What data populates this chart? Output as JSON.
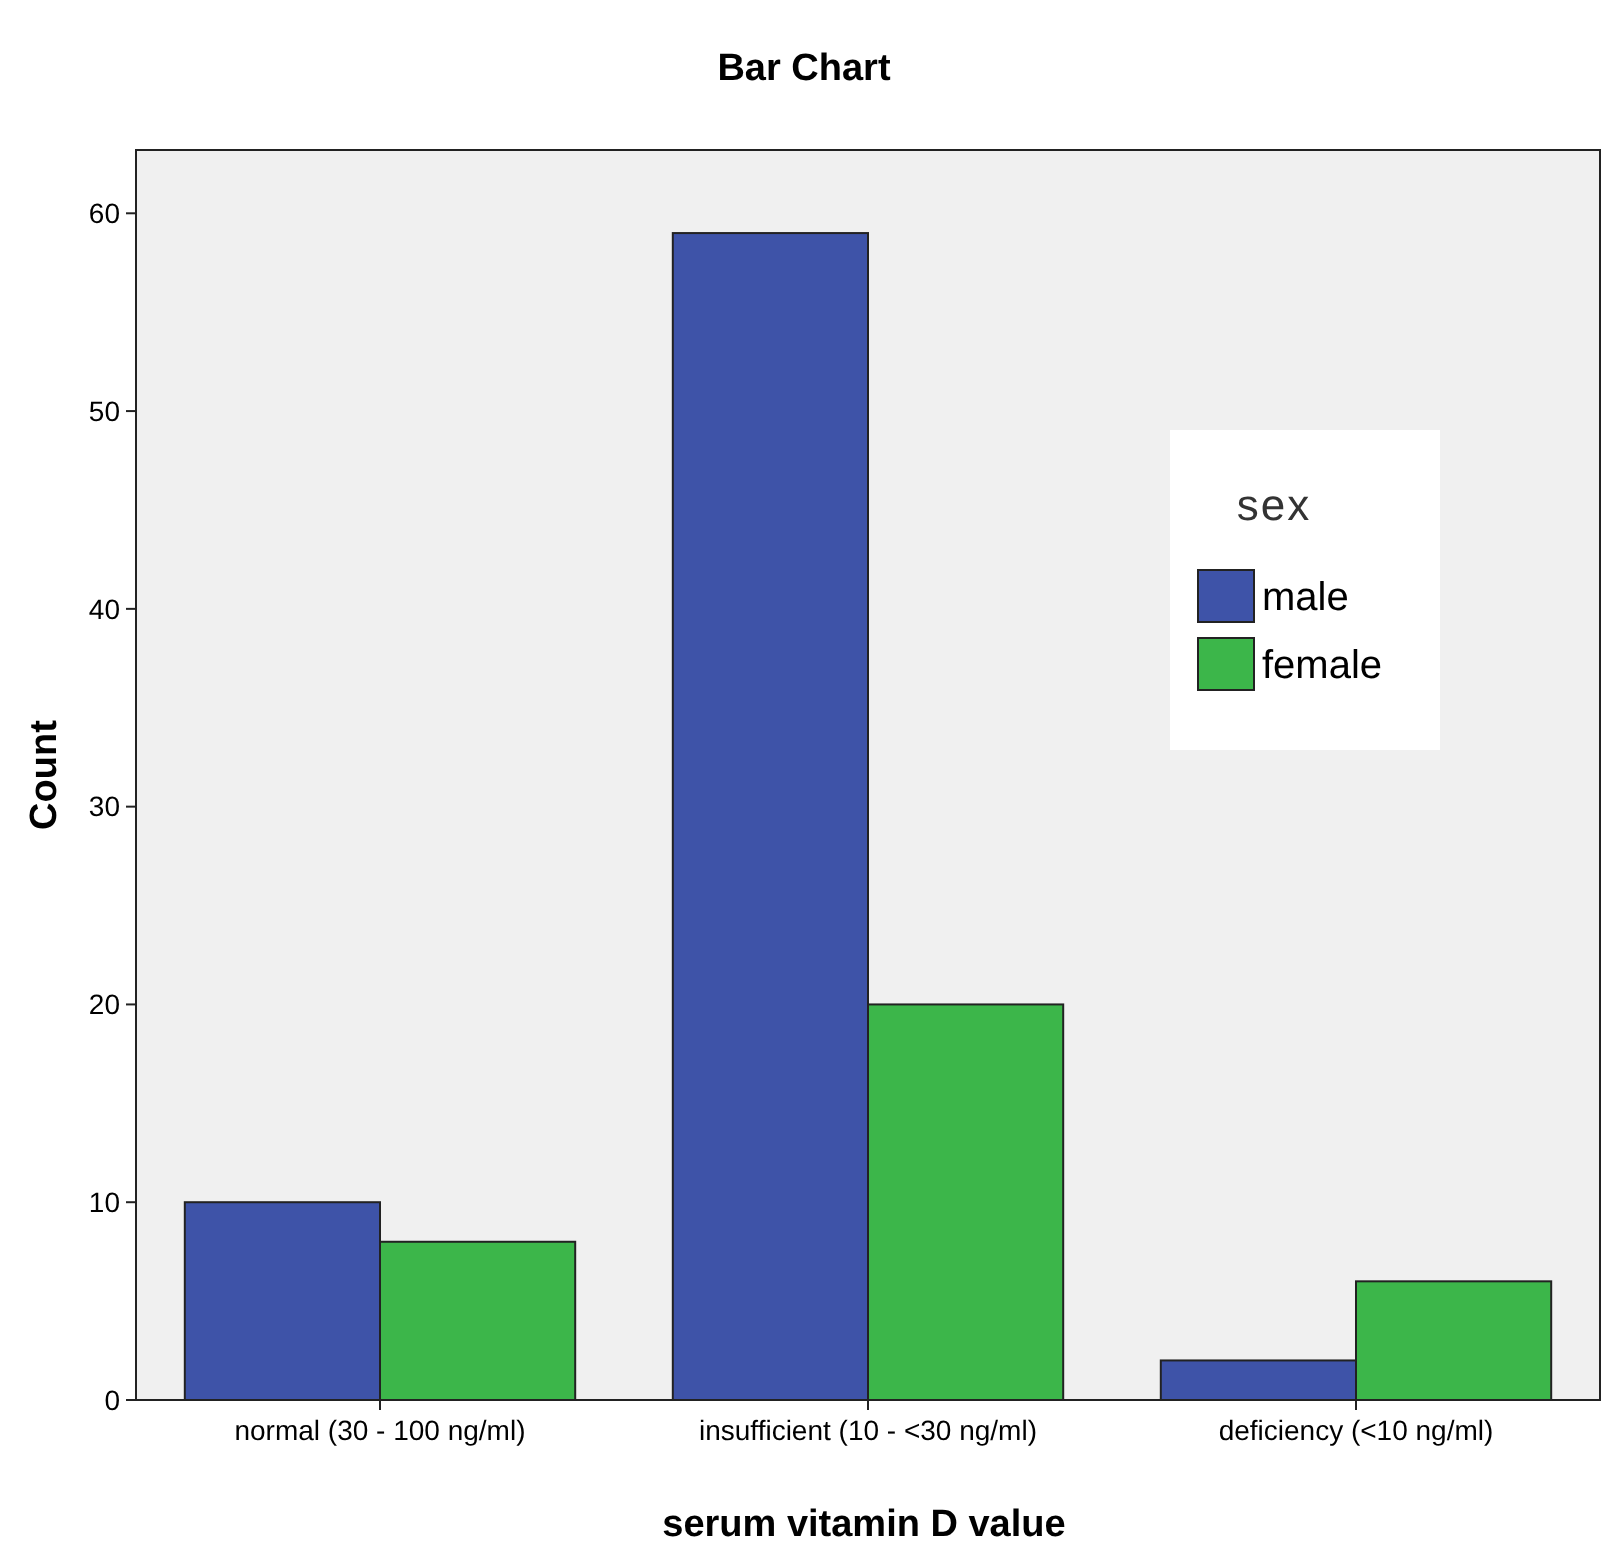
{
  "chart_data": {
    "type": "bar",
    "title": "Bar Chart",
    "xlabel": "serum vitamin D value",
    "ylabel": "Count",
    "legend_title": "sex",
    "categories": [
      "normal (30 - 100 ng/ml)",
      "insufficient (10 - <30 ng/ml)",
      "deficiency (<10 ng/ml)"
    ],
    "series": [
      {
        "name": "male",
        "color": "#3e53a8",
        "values": [
          10,
          59,
          2
        ]
      },
      {
        "name": "female",
        "color": "#3cb64a",
        "values": [
          8,
          20,
          6
        ]
      }
    ],
    "ylim": [
      0,
      63.2
    ],
    "yticks": [
      0,
      10,
      20,
      30,
      40,
      50,
      60
    ],
    "legend": "right",
    "grid": false
  }
}
